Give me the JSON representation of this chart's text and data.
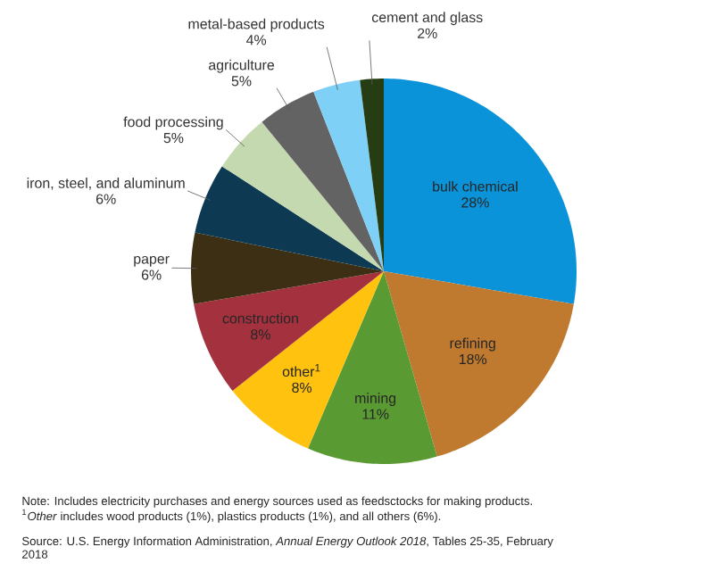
{
  "chart_data": {
    "type": "pie",
    "categories": [
      "bulk chemical",
      "refining",
      "mining",
      "other$^{1}$",
      "construction",
      "paper",
      "iron, steel, and aluminum",
      "food processing",
      "agriculture",
      "metal-based products",
      "cement and glass"
    ],
    "values": [
      28,
      18,
      11,
      8,
      8,
      6,
      6,
      5,
      5,
      4,
      2
    ],
    "value_labels": [
      "28%",
      "18%",
      "11%",
      "8%",
      "8%",
      "6%",
      "6%",
      "5%",
      "5%",
      "4%",
      "2%"
    ],
    "colors": [
      "#0a93d8",
      "#bf7a30",
      "#5a9a32",
      "#ffc20e",
      "#a3313e",
      "#3d2f14",
      "#0d3a52",
      "#c5d9b0",
      "#636363",
      "#7fd0f7",
      "#263d14"
    ],
    "annotations": [
      "Note: Includes electricity purchases and energy sources used as feedsctocks for making products. $^{1}$*Other* includes wood products (1%), plastics products (1%), and all others (6%).",
      "Source: U.S. Energy Information Administration, *Annual Energy Outlook 2018*, Tables 25-35, February 2018"
    ]
  }
}
